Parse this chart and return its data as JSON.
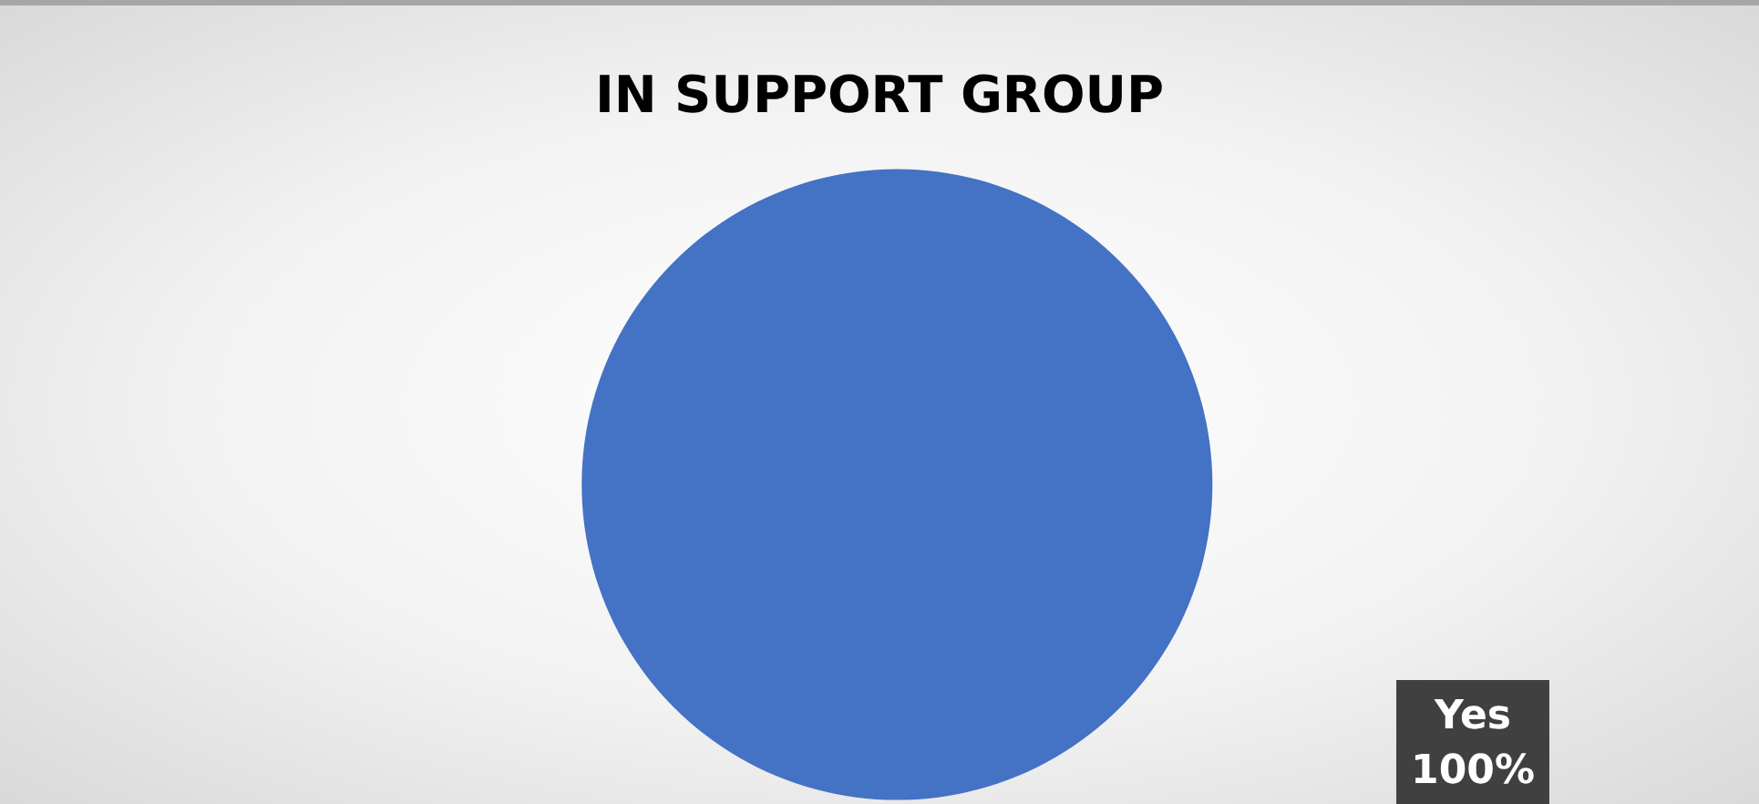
{
  "chart_data": {
    "type": "pie",
    "title": "IN SUPPORT GROUP",
    "categories": [
      "Yes"
    ],
    "values": [
      100
    ],
    "colors": [
      "#4472c4"
    ],
    "value_labels": [
      "100%"
    ],
    "legend": false
  }
}
